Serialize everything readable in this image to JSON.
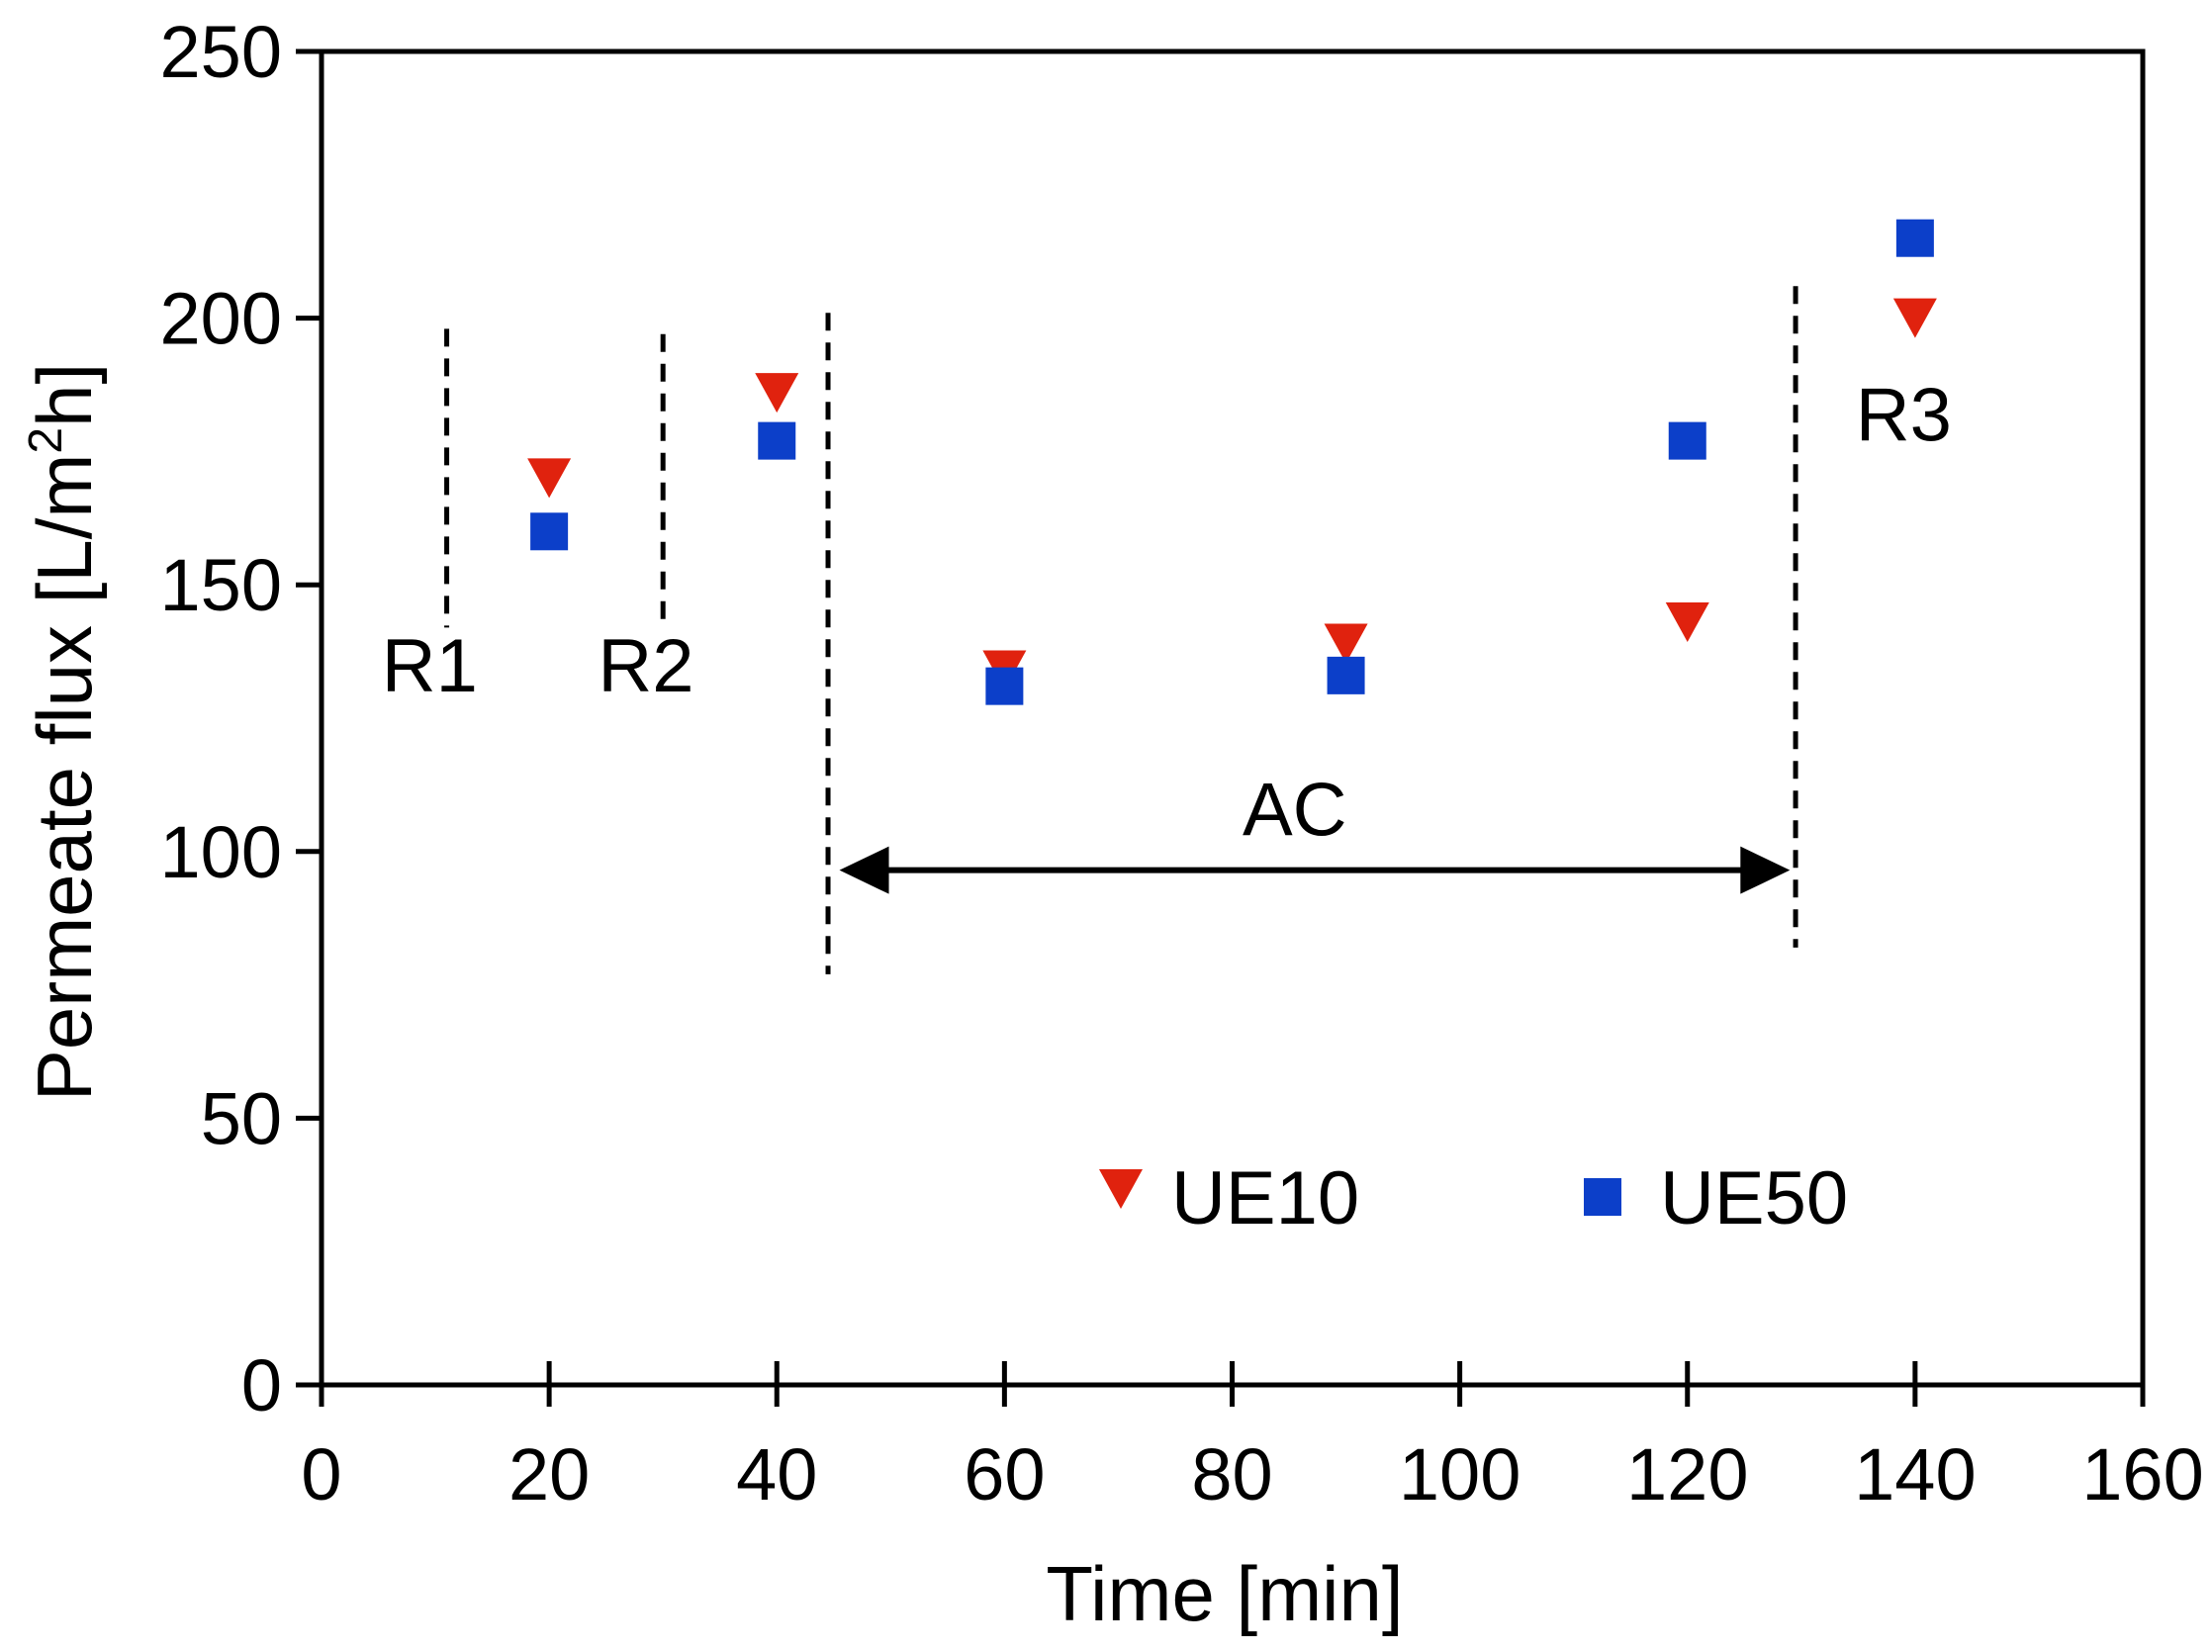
{
  "chart_data": {
    "type": "scatter",
    "title": "",
    "xlabel": "Time [min]",
    "ylabel_parts": [
      "Permeate flux [L/m",
      "2",
      "h]"
    ],
    "xlim": [
      0,
      160
    ],
    "ylim": [
      0,
      250
    ],
    "xticks": [
      0,
      20,
      40,
      60,
      80,
      100,
      120,
      140,
      160
    ],
    "yticks": [
      0,
      50,
      100,
      150,
      200,
      250
    ],
    "xtick_labels": [
      "0",
      "20",
      "40",
      "60",
      "80",
      "100",
      "120",
      "140",
      "160"
    ],
    "ytick_labels": [
      "0",
      "50",
      "100",
      "150",
      "200",
      "250"
    ],
    "grid": false,
    "legend_placement": "bottom-right",
    "series": [
      {
        "name": "UE10",
        "marker": "triangle-down",
        "color": "#e0220e",
        "x": [
          20,
          40,
          60,
          90,
          120,
          140
        ],
        "y": [
          170,
          186,
          134,
          139,
          143,
          200
        ]
      },
      {
        "name": "UE50",
        "marker": "square",
        "color": "#0c3fc9",
        "x": [
          20,
          40,
          60,
          90,
          120,
          140
        ],
        "y": [
          160,
          177,
          131,
          133,
          177,
          215
        ]
      }
    ],
    "annotations": [
      {
        "text": "R1",
        "x": 9.5,
        "y": 130
      },
      {
        "text": "R2",
        "x": 28.5,
        "y": 130
      },
      {
        "text": "AC",
        "x": 85.5,
        "y": 103
      },
      {
        "text": "R3",
        "x": 139,
        "y": 177
      }
    ],
    "dashed_lines": [
      {
        "x": 11,
        "y_from": 142,
        "y_to": 198
      },
      {
        "x": 30,
        "y_from": 142,
        "y_to": 197
      },
      {
        "x": 44.5,
        "y_from": 77,
        "y_to": 201
      },
      {
        "x": 129.5,
        "y_from": 82,
        "y_to": 206
      }
    ],
    "arrow": {
      "x_from": 45.5,
      "x_to": 129,
      "y": 96.5,
      "label": "AC"
    }
  }
}
